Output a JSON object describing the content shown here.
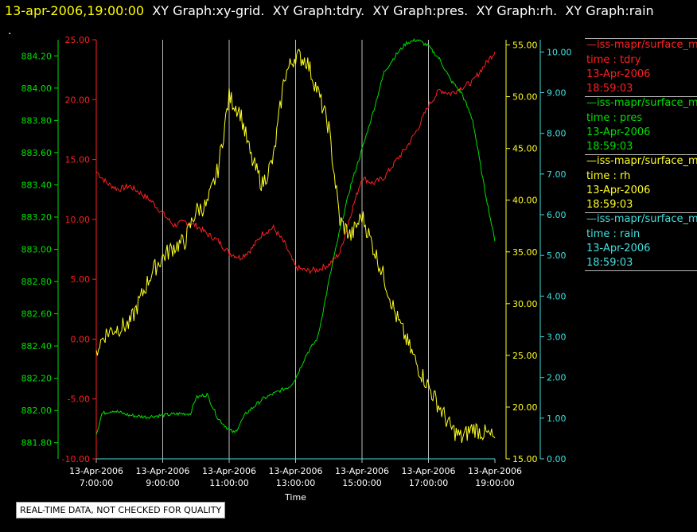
{
  "header": {
    "timestamp": "13-apr-2006,19:00:00",
    "titles": [
      "XY Graph:xy-grid.",
      "XY Graph:tdry.",
      "XY Graph:pres.",
      "XY Graph:rh.",
      "XY Graph:rain"
    ]
  },
  "dot": ".",
  "notice": "REAL-TIME DATA, NOT CHECKED FOR QUALITY",
  "colors": {
    "tdry": "#ff2020",
    "pres": "#00e000",
    "rh": "#ffff20",
    "rain": "#40e0e0",
    "grid": "#bbbbbb"
  },
  "legend": [
    {
      "name": "—iss-mapr/surface_m",
      "field": "time : tdry",
      "date": "13-Apr-2006",
      "time": "18:59:03",
      "color": "#ff2020"
    },
    {
      "name": "—iss-mapr/surface_m",
      "field": "time : pres",
      "date": "13-Apr-2006",
      "time": "18:59:03",
      "color": "#00e000"
    },
    {
      "name": "—iss-mapr/surface_m",
      "field": "time : rh",
      "date": "13-Apr-2006",
      "time": "18:59:03",
      "color": "#ffff20"
    },
    {
      "name": "—iss-mapr/surface_m",
      "field": "time : rain",
      "date": "13-Apr-2006",
      "time": "18:59:03",
      "color": "#40e0e0"
    }
  ],
  "chart_data": {
    "type": "line",
    "xlabel": "Time",
    "xlim": [
      "13-Apr-2006 7:00:00",
      "13-Apr-2006 19:00:00"
    ],
    "x_ticks": [
      {
        "date": "13-Apr-2006",
        "time": "7:00:00"
      },
      {
        "date": "13-Apr-2006",
        "time": "9:00:00"
      },
      {
        "date": "13-Apr-2006",
        "time": "11:00:00"
      },
      {
        "date": "13-Apr-2006",
        "time": "13:00:00"
      },
      {
        "date": "13-Apr-2006",
        "time": "15:00:00"
      },
      {
        "date": "13-Apr-2006",
        "time": "17:00:00"
      },
      {
        "date": "13-Apr-2006",
        "time": "19:00:00"
      }
    ],
    "grid": "vertical",
    "axes": [
      {
        "id": "tdry",
        "color": "#ff2020",
        "range": [
          -10,
          25
        ],
        "ticks": [
          "-10.00",
          "-5.00",
          "0.00",
          "5.00",
          "10.00",
          "15.00",
          "20.00",
          "25.00"
        ]
      },
      {
        "id": "pres",
        "color": "#00e000",
        "range": [
          881.7,
          884.3
        ],
        "ticks": [
          "881.80",
          "882.00",
          "882.20",
          "882.40",
          "882.60",
          "882.80",
          "883.00",
          "883.20",
          "883.40",
          "883.60",
          "883.80",
          "884.00",
          "884.20"
        ]
      },
      {
        "id": "rh",
        "color": "#ffff20",
        "range": [
          15,
          55.5
        ],
        "ticks": [
          "15.00",
          "20.00",
          "25.00",
          "30.00",
          "35.00",
          "40.00",
          "45.00",
          "50.00",
          "55.00"
        ]
      },
      {
        "id": "rain",
        "color": "#40e0e0",
        "range": [
          0,
          10.3
        ],
        "ticks": [
          "0.00",
          "1.00",
          "2.00",
          "3.00",
          "4.00",
          "5.00",
          "6.00",
          "7.00",
          "8.00",
          "9.00",
          "10.00"
        ]
      }
    ],
    "series": [
      {
        "name": "tdry",
        "axis": "tdry",
        "color": "#ff2020",
        "x": [
          "07:00",
          "07:20",
          "07:40",
          "08:00",
          "08:20",
          "08:40",
          "09:00",
          "09:20",
          "09:40",
          "10:00",
          "10:20",
          "10:40",
          "11:00",
          "11:20",
          "11:40",
          "12:00",
          "12:20",
          "12:40",
          "13:00",
          "13:20",
          "13:40",
          "14:00",
          "14:20",
          "14:40",
          "15:00",
          "15:20",
          "15:40",
          "16:00",
          "16:20",
          "16:40",
          "17:00",
          "17:20",
          "17:40",
          "18:00",
          "18:20",
          "18:40",
          "19:00"
        ],
        "values": [
          14,
          13,
          12.5,
          12.8,
          12.2,
          11.5,
          10.5,
          9.5,
          9.8,
          9.5,
          8.8,
          8.2,
          7.2,
          6.8,
          7.5,
          8.8,
          9.3,
          8,
          6,
          5.7,
          5.8,
          6.2,
          7.2,
          10.5,
          13.5,
          13,
          13.5,
          14.8,
          16,
          17.5,
          19.5,
          20.8,
          20.5,
          21,
          21.5,
          22.8,
          24
        ]
      },
      {
        "name": "pres",
        "axis": "pres",
        "color": "#00e000",
        "x": [
          "07:00",
          "07:10",
          "07:30",
          "08:00",
          "08:30",
          "09:00",
          "09:30",
          "09:50",
          "10:00",
          "10:20",
          "10:40",
          "11:00",
          "11:10",
          "11:30",
          "12:00",
          "12:30",
          "12:50",
          "13:00",
          "13:20",
          "13:40",
          "14:00",
          "14:20",
          "14:40",
          "15:00",
          "15:20",
          "15:40",
          "16:00",
          "16:20",
          "16:40",
          "17:00",
          "17:20",
          "17:40",
          "18:00",
          "18:20",
          "18:40",
          "19:00"
        ],
        "values": [
          881.85,
          881.98,
          882.0,
          881.97,
          881.96,
          881.97,
          881.98,
          881.98,
          882.08,
          882.1,
          881.95,
          881.88,
          881.86,
          881.98,
          882.07,
          882.12,
          882.15,
          882.2,
          882.35,
          882.45,
          882.8,
          883.12,
          883.4,
          883.62,
          883.85,
          884.1,
          884.2,
          884.28,
          884.3,
          884.26,
          884.18,
          884.05,
          883.97,
          883.8,
          883.4,
          883.05
        ]
      },
      {
        "name": "rh",
        "axis": "rh",
        "color": "#ffff20",
        "x": [
          "07:00",
          "07:15",
          "07:30",
          "08:00",
          "08:20",
          "08:40",
          "09:00",
          "09:20",
          "09:40",
          "10:00",
          "10:20",
          "10:40",
          "11:00",
          "11:20",
          "11:40",
          "12:00",
          "12:20",
          "12:40",
          "13:00",
          "13:20",
          "13:40",
          "14:00",
          "14:20",
          "14:40",
          "15:00",
          "15:20",
          "15:40",
          "16:00",
          "16:20",
          "16:40",
          "17:00",
          "17:20",
          "17:40",
          "18:00",
          "18:20",
          "18:40",
          "19:00"
        ],
        "values": [
          25.5,
          27,
          27.5,
          28,
          30.5,
          33,
          34.5,
          35.5,
          36,
          39,
          39.5,
          43,
          50,
          48.5,
          44,
          41.5,
          44,
          52,
          54,
          53.5,
          50.5,
          47,
          38,
          36.5,
          38.5,
          35.5,
          32.5,
          29,
          26.5,
          24,
          22,
          20,
          18,
          17,
          18,
          17.5,
          17
        ]
      },
      {
        "name": "rain",
        "axis": "rain",
        "color": "#40e0e0",
        "x": [
          "07:00",
          "19:00"
        ],
        "values": [
          0.0,
          0.0
        ]
      }
    ]
  }
}
